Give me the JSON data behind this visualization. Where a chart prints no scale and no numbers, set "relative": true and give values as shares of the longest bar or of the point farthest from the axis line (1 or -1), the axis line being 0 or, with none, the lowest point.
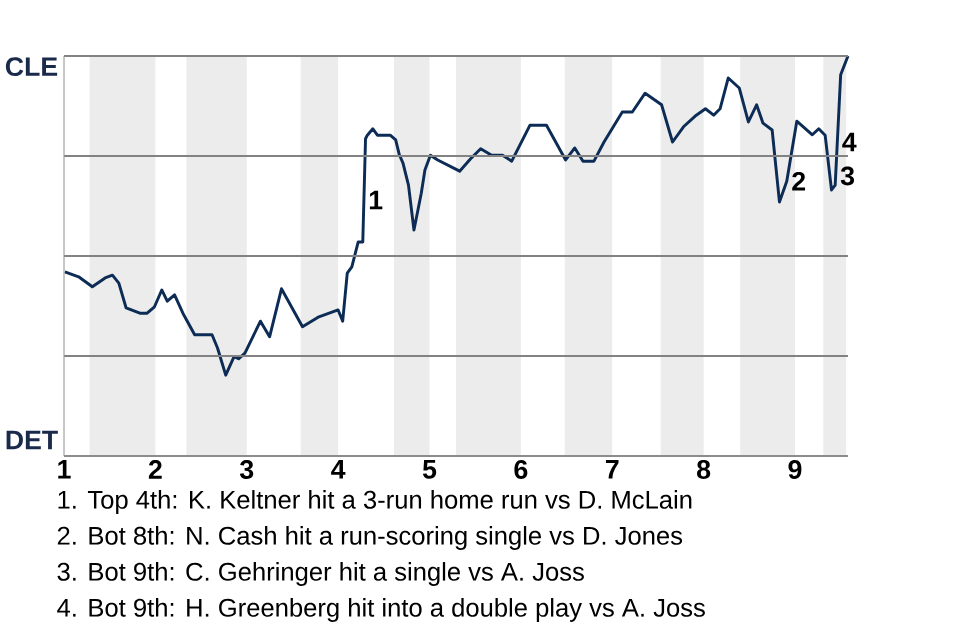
{
  "chart_data": {
    "type": "line",
    "relative": true,
    "xlim": [
      1,
      9.58
    ],
    "xticks": [
      1,
      2,
      3,
      4,
      5,
      6,
      7,
      8,
      9
    ],
    "grid": "y",
    "bands": [
      {
        "axis": "x",
        "from": 1.28,
        "to": 2,
        "color": "#ececec"
      },
      {
        "axis": "x",
        "from": 2.34,
        "to": 3,
        "color": "#ececec"
      },
      {
        "axis": "x",
        "from": 3.59,
        "to": 4,
        "color": "#ececec"
      },
      {
        "axis": "x",
        "from": 4.61,
        "to": 5,
        "color": "#ececec"
      },
      {
        "axis": "x",
        "from": 5.29,
        "to": 6,
        "color": "#ececec"
      },
      {
        "axis": "x",
        "from": 6.48,
        "to": 7,
        "color": "#ececec"
      },
      {
        "axis": "x",
        "from": 7.53,
        "to": 8,
        "color": "#ececec"
      },
      {
        "axis": "x",
        "from": 8.4,
        "to": 9,
        "color": "#ececec"
      },
      {
        "axis": "x",
        "from": 9.31,
        "to": 9.56,
        "color": "#ececec"
      }
    ],
    "series": [
      {
        "color": "#0c2c56",
        "x": [
          1.01,
          1.16,
          1.31,
          1.45,
          1.53,
          1.6,
          1.68,
          1.83,
          1.91,
          1.99,
          2.07,
          2.13,
          2.21,
          2.31,
          2.43,
          2.62,
          2.68,
          2.77,
          2.86,
          2.91,
          2.98,
          3.15,
          3.25,
          3.38,
          3.48,
          3.61,
          3.79,
          4.0,
          4.05,
          4.1,
          4.15,
          4.22,
          4.27,
          4.3,
          4.32,
          4.38,
          4.43,
          4.57,
          4.63,
          4.67,
          4.71,
          4.77,
          4.83,
          4.91,
          4.95,
          5.01,
          5.09,
          5.33,
          5.45,
          5.56,
          5.68,
          5.8,
          5.9,
          6.1,
          6.28,
          6.49,
          6.59,
          6.68,
          6.8,
          6.91,
          7.11,
          7.22,
          7.36,
          7.54,
          7.66,
          7.78,
          7.92,
          8.02,
          8.11,
          8.18,
          8.27,
          8.39,
          8.49,
          8.58,
          8.65,
          8.75,
          8.83,
          8.91,
          9.02,
          9.19,
          9.26,
          9.33,
          9.4,
          9.44,
          9.5,
          9.58
        ],
        "values": [
          0.46,
          0.448,
          0.423,
          0.445,
          0.452,
          0.432,
          0.37,
          0.357,
          0.357,
          0.373,
          0.415,
          0.387,
          0.403,
          0.353,
          0.303,
          0.303,
          0.27,
          0.202,
          0.248,
          0.243,
          0.257,
          0.337,
          0.298,
          0.418,
          0.377,
          0.323,
          0.348,
          0.365,
          0.337,
          0.457,
          0.473,
          0.535,
          0.535,
          0.793,
          0.802,
          0.818,
          0.802,
          0.802,
          0.79,
          0.753,
          0.732,
          0.677,
          0.565,
          0.657,
          0.715,
          0.752,
          0.74,
          0.712,
          0.743,
          0.768,
          0.752,
          0.752,
          0.737,
          0.827,
          0.827,
          0.74,
          0.77,
          0.737,
          0.737,
          0.785,
          0.86,
          0.86,
          0.907,
          0.878,
          0.785,
          0.823,
          0.852,
          0.868,
          0.852,
          0.868,
          0.945,
          0.92,
          0.835,
          0.878,
          0.832,
          0.815,
          0.635,
          0.687,
          0.837,
          0.803,
          0.818,
          0.802,
          0.665,
          0.677,
          0.953,
          1
        ]
      }
    ],
    "annotations": [
      "CLE",
      "DET",
      {
        "text": "1",
        "x": 4.28,
        "y": 0.64
      },
      {
        "text": "2",
        "x": 8.91,
        "y": 0.687
      },
      {
        "text": "3",
        "x": 9.445,
        "y": 0.7
      },
      {
        "text": "4",
        "x": 9.463,
        "y": 0.785
      },
      "1. Top 4th: K. Keltner hit a 3-run home run vs D. McLain",
      "2. Bot 8th: N. Cash hit a run-scoring single vs D. Jones",
      "3. Bot 9th: C. Gehringer hit a single vs A. Joss",
      "4. Bot 9th: H. Greenberg hit into a double play vs A. Joss"
    ]
  }
}
